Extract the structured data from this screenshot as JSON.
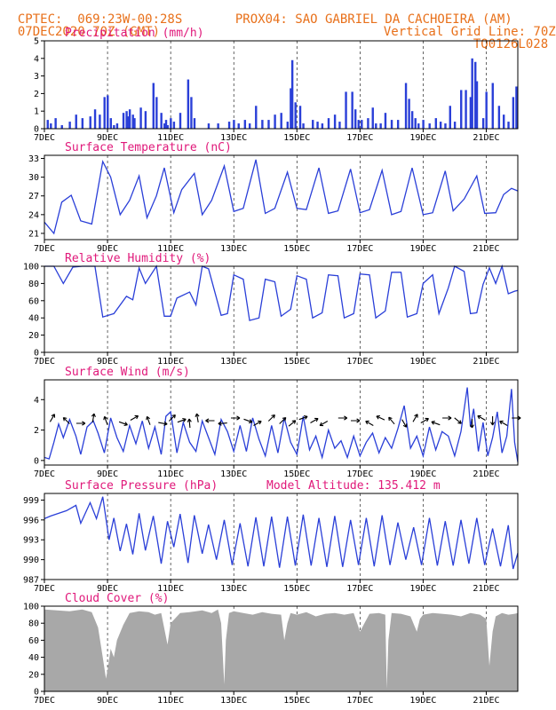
{
  "header": {
    "line1_left": "CPTEC:  069:23W-00:28S",
    "line1_right": "PROX04: SAO GABRIEL DA CACHOEIRA (AM)",
    "line2_left": "07DEC2020 70Z (GMT)",
    "line2_right": "Vertical Grid Line: 70Z",
    "line3_right": "TQ0126L028"
  },
  "colors": {
    "line": "#2a3fd8",
    "title": "#e0187a",
    "header": "#e8701a",
    "cloud": "#a8a8a8",
    "arrow": "#000000"
  },
  "x_axis": {
    "start_day": 7,
    "end_day": 22,
    "ticks": [
      {
        "day": 7,
        "label": "7DEC"
      },
      {
        "day": 9,
        "label": "9DEC"
      },
      {
        "day": 11,
        "label": "11DEC"
      },
      {
        "day": 13,
        "label": "13DEC"
      },
      {
        "day": 15,
        "label": "15DEC"
      },
      {
        "day": 17,
        "label": "17DEC"
      },
      {
        "day": 19,
        "label": "19DEC"
      },
      {
        "day": 21,
        "label": "21DEC"
      }
    ],
    "gridlines_days": [
      9,
      11,
      13,
      15,
      17,
      19,
      21
    ]
  },
  "chart_data": [
    {
      "id": "precip",
      "type": "bar",
      "title": "Precipitation (mm/h)",
      "ylim": [
        0,
        5
      ],
      "yticks": [
        0,
        1,
        2,
        3,
        4,
        5
      ],
      "x": [
        7.1,
        7.2,
        7.35,
        7.55,
        7.8,
        8.0,
        8.2,
        8.45,
        8.6,
        8.75,
        8.9,
        9.0,
        9.1,
        9.2,
        9.3,
        9.5,
        9.6,
        9.65,
        9.7,
        9.8,
        9.85,
        10.05,
        10.2,
        10.45,
        10.55,
        10.7,
        10.8,
        10.85,
        10.9,
        11.0,
        11.1,
        11.3,
        11.55,
        11.65,
        11.75,
        12.2,
        12.5,
        12.85,
        13.0,
        13.15,
        13.35,
        13.5,
        13.7,
        13.9,
        14.1,
        14.3,
        14.5,
        14.7,
        14.8,
        14.85,
        14.95,
        15.1,
        15.2,
        15.5,
        15.65,
        15.8,
        16.0,
        16.2,
        16.35,
        16.55,
        16.75,
        16.85,
        16.95,
        17.05,
        17.25,
        17.4,
        17.5,
        17.65,
        17.8,
        18.0,
        18.2,
        18.45,
        18.55,
        18.65,
        18.75,
        18.85,
        19.0,
        19.2,
        19.4,
        19.55,
        19.7,
        19.85,
        20.0,
        20.2,
        20.35,
        20.5,
        20.55,
        20.65,
        20.7,
        20.9,
        21.0,
        21.2,
        21.4,
        21.55,
        21.7,
        21.85,
        21.95
      ],
      "values": [
        0.5,
        0.3,
        0.6,
        0.2,
        0.4,
        0.8,
        0.6,
        0.7,
        1.1,
        0.8,
        1.8,
        1.9,
        0.6,
        0.2,
        0.3,
        0.9,
        1.0,
        0.7,
        1.1,
        0.8,
        0.6,
        1.2,
        1.0,
        2.6,
        1.8,
        0.9,
        0.3,
        0.5,
        0.2,
        0.6,
        0.4,
        0.9,
        2.8,
        1.8,
        0.6,
        0.3,
        0.3,
        0.4,
        0.5,
        0.3,
        0.5,
        0.3,
        1.3,
        0.5,
        0.5,
        0.8,
        0.9,
        0.4,
        2.3,
        3.9,
        1.5,
        1.3,
        0.3,
        0.5,
        0.4,
        0.3,
        0.6,
        0.8,
        0.4,
        2.1,
        2.1,
        1.1,
        0.5,
        0.5,
        0.6,
        1.2,
        0.3,
        0.3,
        0.9,
        0.5,
        0.5,
        2.6,
        1.7,
        1.0,
        0.6,
        0.3,
        0.5,
        0.3,
        0.6,
        0.4,
        0.3,
        1.3,
        0.4,
        2.2,
        2.2,
        1.8,
        4.0,
        3.8,
        2.7,
        0.6,
        2.1,
        2.6,
        1.3,
        0.8,
        0.4,
        1.8,
        2.4
      ]
    },
    {
      "id": "temp",
      "type": "line",
      "title": "Surface Temperature (nC)",
      "ylim": [
        20,
        33.5
      ],
      "yticks": [
        21,
        24,
        27,
        30,
        33
      ],
      "x": [
        7.0,
        7.3,
        7.55,
        7.85,
        8.15,
        8.5,
        8.85,
        9.1,
        9.4,
        9.7,
        10.0,
        10.25,
        10.55,
        10.8,
        11.1,
        11.35,
        11.75,
        12.0,
        12.3,
        12.7,
        13.0,
        13.3,
        13.7,
        14.0,
        14.3,
        14.7,
        15.0,
        15.3,
        15.7,
        16.0,
        16.3,
        16.7,
        17.0,
        17.3,
        17.7,
        18.0,
        18.3,
        18.65,
        19.0,
        19.3,
        19.7,
        19.95,
        20.3,
        20.7,
        20.95,
        21.3,
        21.55,
        21.8,
        22.0
      ],
      "values": [
        22.8,
        21.0,
        26.0,
        27.1,
        23.0,
        22.5,
        32.5,
        30.0,
        24.0,
        26.3,
        30.2,
        23.5,
        27.0,
        31.5,
        24.3,
        28.0,
        30.6,
        24.0,
        26.3,
        31.8,
        24.5,
        25.0,
        32.8,
        24.2,
        25.0,
        30.8,
        25.0,
        24.8,
        31.5,
        24.2,
        24.6,
        31.3,
        24.3,
        24.8,
        31.1,
        24.0,
        24.5,
        31.5,
        24.0,
        24.3,
        31.0,
        24.6,
        26.5,
        30.2,
        24.2,
        24.3,
        27.2,
        28.2,
        27.8
      ]
    },
    {
      "id": "rh",
      "type": "line",
      "title": "Relative Humidity (%)",
      "ylim": [
        0,
        100
      ],
      "yticks": [
        0,
        20,
        40,
        60,
        80,
        100
      ],
      "x": [
        7.0,
        7.3,
        7.6,
        7.9,
        8.2,
        8.6,
        8.85,
        9.2,
        9.6,
        9.8,
        10.0,
        10.2,
        10.55,
        10.8,
        11.0,
        11.2,
        11.6,
        11.8,
        12.0,
        12.2,
        12.6,
        12.8,
        13.0,
        13.3,
        13.5,
        13.8,
        14.0,
        14.3,
        14.5,
        14.8,
        15.0,
        15.3,
        15.5,
        15.8,
        16.0,
        16.3,
        16.5,
        16.8,
        17.0,
        17.3,
        17.5,
        17.8,
        18.0,
        18.3,
        18.5,
        18.8,
        19.0,
        19.3,
        19.5,
        19.8,
        20.0,
        20.3,
        20.5,
        20.7,
        20.9,
        21.1,
        21.3,
        21.5,
        21.7,
        21.9,
        22.0
      ],
      "values": [
        100,
        100,
        80,
        99,
        100,
        100,
        41,
        45,
        65,
        61,
        98,
        80,
        100,
        42,
        42,
        63,
        70,
        55,
        100,
        97,
        43,
        45,
        90,
        85,
        37,
        40,
        85,
        82,
        42,
        50,
        89,
        85,
        40,
        46,
        90,
        89,
        40,
        45,
        91,
        90,
        40,
        48,
        93,
        93,
        41,
        45,
        80,
        90,
        45,
        75,
        100,
        94,
        45,
        46,
        79,
        98,
        80,
        100,
        68,
        71,
        72
      ]
    },
    {
      "id": "wind",
      "type": "line",
      "title": "Surface Wind (m/s)",
      "ylim": [
        -0.3,
        5.3
      ],
      "yticks": [
        0,
        2,
        4
      ],
      "x": [
        7.0,
        7.15,
        7.3,
        7.45,
        7.6,
        7.8,
        8.0,
        8.15,
        8.35,
        8.55,
        8.7,
        8.9,
        9.1,
        9.3,
        9.5,
        9.7,
        9.9,
        10.1,
        10.3,
        10.5,
        10.7,
        10.85,
        11.0,
        11.2,
        11.4,
        11.6,
        11.8,
        12.0,
        12.2,
        12.4,
        12.6,
        12.8,
        13.0,
        13.2,
        13.4,
        13.6,
        13.8,
        14.0,
        14.2,
        14.4,
        14.6,
        14.8,
        15.0,
        15.2,
        15.4,
        15.6,
        15.8,
        16.0,
        16.2,
        16.4,
        16.6,
        16.8,
        17.0,
        17.2,
        17.4,
        17.6,
        17.8,
        18.0,
        18.2,
        18.4,
        18.6,
        18.8,
        19.0,
        19.2,
        19.4,
        19.6,
        19.8,
        20.0,
        20.2,
        20.4,
        20.5,
        20.6,
        20.75,
        20.9,
        21.05,
        21.2,
        21.35,
        21.5,
        21.65,
        21.8,
        21.9,
        22.0
      ],
      "values": [
        0.2,
        0.1,
        1.2,
        2.4,
        1.5,
        2.7,
        1.6,
        0.4,
        2.2,
        2.6,
        1.8,
        0.5,
        2.8,
        1.5,
        0.6,
        2.3,
        1.1,
        2.6,
        0.8,
        2.2,
        0.4,
        2.9,
        3.2,
        0.5,
        2.5,
        1.2,
        0.6,
        2.6,
        1.5,
        0.4,
        2.7,
        1.9,
        0.6,
        2.3,
        0.6,
        2.8,
        1.4,
        0.3,
        2.3,
        0.5,
        2.8,
        1.2,
        0.4,
        2.9,
        0.7,
        1.6,
        0.2,
        2.0,
        0.8,
        1.3,
        0.2,
        1.6,
        0.3,
        1.2,
        1.8,
        0.5,
        1.5,
        0.8,
        2.1,
        3.6,
        0.8,
        1.6,
        0.3,
        2.2,
        0.7,
        1.9,
        1.6,
        0.3,
        1.9,
        4.8,
        2.2,
        3.4,
        0.6,
        2.5,
        0.3,
        1.5,
        3.2,
        0.5,
        1.6,
        4.7,
        1.2,
        -0.1
      ]
    },
    {
      "id": "pressure",
      "type": "line",
      "title": "Surface Pressure (hPa)",
      "annotation": "Model Altitude: 135.412 m",
      "ylim": [
        987,
        1000
      ],
      "yticks": [
        987,
        990,
        993,
        996,
        999
      ],
      "x": [
        7.0,
        7.2,
        7.45,
        7.7,
        8.0,
        8.15,
        8.45,
        8.65,
        8.85,
        9.05,
        9.2,
        9.4,
        9.6,
        9.8,
        10.0,
        10.2,
        10.45,
        10.7,
        10.9,
        11.1,
        11.3,
        11.55,
        11.75,
        12.0,
        12.2,
        12.45,
        12.7,
        12.95,
        13.2,
        13.45,
        13.7,
        13.95,
        14.2,
        14.45,
        14.7,
        14.95,
        15.2,
        15.45,
        15.7,
        15.95,
        16.2,
        16.45,
        16.7,
        16.95,
        17.2,
        17.45,
        17.7,
        17.95,
        18.2,
        18.45,
        18.7,
        18.95,
        19.2,
        19.45,
        19.7,
        19.95,
        20.2,
        20.45,
        20.7,
        20.95,
        21.2,
        21.45,
        21.7,
        21.85,
        22.0
      ],
      "values": [
        996.2,
        996.6,
        997.0,
        997.4,
        998.2,
        995.5,
        998.6,
        996.2,
        999.5,
        993.0,
        996.3,
        991.3,
        995.4,
        990.8,
        997.0,
        991.4,
        996.6,
        989.4,
        995.8,
        991.9,
        996.9,
        989.5,
        996.7,
        990.9,
        995.3,
        990.0,
        996.0,
        989.2,
        995.5,
        989.0,
        996.4,
        989.0,
        996.5,
        988.8,
        996.5,
        989.1,
        996.8,
        989.1,
        996.3,
        988.9,
        996.6,
        988.9,
        996.0,
        989.2,
        996.3,
        989.0,
        996.7,
        989.2,
        995.6,
        990.0,
        994.9,
        989.2,
        996.3,
        989.1,
        995.8,
        989.1,
        996.0,
        989.4,
        996.3,
        989.2,
        994.7,
        989.0,
        995.2,
        988.6,
        991.0
      ]
    },
    {
      "id": "cloud",
      "type": "area",
      "title": "Cloud Cover (%)",
      "ylim": [
        0,
        100
      ],
      "yticks": [
        0,
        20,
        40,
        60,
        80,
        100
      ],
      "x": [
        7.0,
        7.4,
        7.8,
        8.2,
        8.5,
        8.7,
        8.85,
        8.95,
        9.0,
        9.1,
        9.2,
        9.3,
        9.5,
        9.7,
        10.0,
        10.3,
        10.5,
        10.7,
        10.9,
        11.0,
        11.3,
        11.6,
        12.0,
        12.3,
        12.5,
        12.6,
        12.7,
        12.75,
        12.85,
        13.0,
        13.3,
        13.6,
        13.9,
        14.2,
        14.5,
        14.6,
        14.7,
        14.8,
        15.0,
        15.3,
        15.6,
        15.9,
        16.2,
        16.5,
        16.8,
        17.0,
        17.3,
        17.6,
        17.8,
        17.85,
        17.9,
        18.0,
        18.3,
        18.6,
        18.8,
        18.9,
        19.0,
        19.3,
        19.6,
        19.9,
        20.2,
        20.5,
        20.8,
        21.0,
        21.1,
        21.2,
        21.3,
        21.5,
        21.7,
        21.9,
        22.0
      ],
      "values": [
        96,
        95,
        94,
        96,
        93,
        75,
        40,
        15,
        25,
        50,
        40,
        60,
        78,
        92,
        94,
        93,
        90,
        92,
        55,
        80,
        92,
        93,
        95,
        92,
        96,
        80,
        8,
        60,
        92,
        94,
        92,
        90,
        93,
        91,
        90,
        60,
        80,
        92,
        90,
        93,
        88,
        91,
        92,
        90,
        92,
        70,
        91,
        92,
        90,
        3,
        60,
        92,
        91,
        88,
        70,
        85,
        90,
        92,
        91,
        90,
        88,
        92,
        90,
        85,
        30,
        70,
        88,
        92,
        90,
        91,
        92
      ]
    }
  ],
  "wind_arrows": [
    {
      "day": 7.25,
      "deg": -60
    },
    {
      "day": 7.7,
      "deg": -135
    },
    {
      "day": 8.15,
      "deg": 0
    },
    {
      "day": 8.55,
      "deg": -80
    },
    {
      "day": 8.95,
      "deg": -110
    },
    {
      "day": 9.5,
      "deg": 20
    },
    {
      "day": 9.85,
      "deg": -30
    },
    {
      "day": 10.3,
      "deg": -110
    },
    {
      "day": 10.75,
      "deg": 10
    },
    {
      "day": 11.05,
      "deg": -45
    },
    {
      "day": 11.35,
      "deg": -20
    },
    {
      "day": 11.6,
      "deg": -95
    },
    {
      "day": 11.85,
      "deg": -100
    },
    {
      "day": 12.25,
      "deg": 180
    },
    {
      "day": 12.65,
      "deg": 175
    },
    {
      "day": 13.05,
      "deg": 0
    },
    {
      "day": 13.45,
      "deg": 20
    },
    {
      "day": 13.75,
      "deg": -30
    },
    {
      "day": 14.2,
      "deg": -45
    },
    {
      "day": 14.55,
      "deg": -45
    },
    {
      "day": 14.85,
      "deg": -40
    },
    {
      "day": 15.2,
      "deg": -20
    },
    {
      "day": 15.55,
      "deg": -30
    },
    {
      "day": 15.85,
      "deg": 150
    },
    {
      "day": 16.45,
      "deg": 0
    },
    {
      "day": 16.85,
      "deg": 0
    },
    {
      "day": 17.3,
      "deg": -150
    },
    {
      "day": 17.65,
      "deg": -155
    },
    {
      "day": 18.0,
      "deg": -130
    },
    {
      "day": 18.4,
      "deg": 60
    },
    {
      "day": 18.75,
      "deg": -60
    },
    {
      "day": 19.05,
      "deg": -30
    },
    {
      "day": 19.4,
      "deg": -160
    },
    {
      "day": 19.75,
      "deg": 0
    },
    {
      "day": 20.1,
      "deg": 40
    },
    {
      "day": 20.55,
      "deg": 90
    },
    {
      "day": 20.85,
      "deg": -150
    },
    {
      "day": 21.2,
      "deg": 90
    },
    {
      "day": 21.55,
      "deg": -150
    },
    {
      "day": 21.95,
      "deg": 0
    }
  ]
}
